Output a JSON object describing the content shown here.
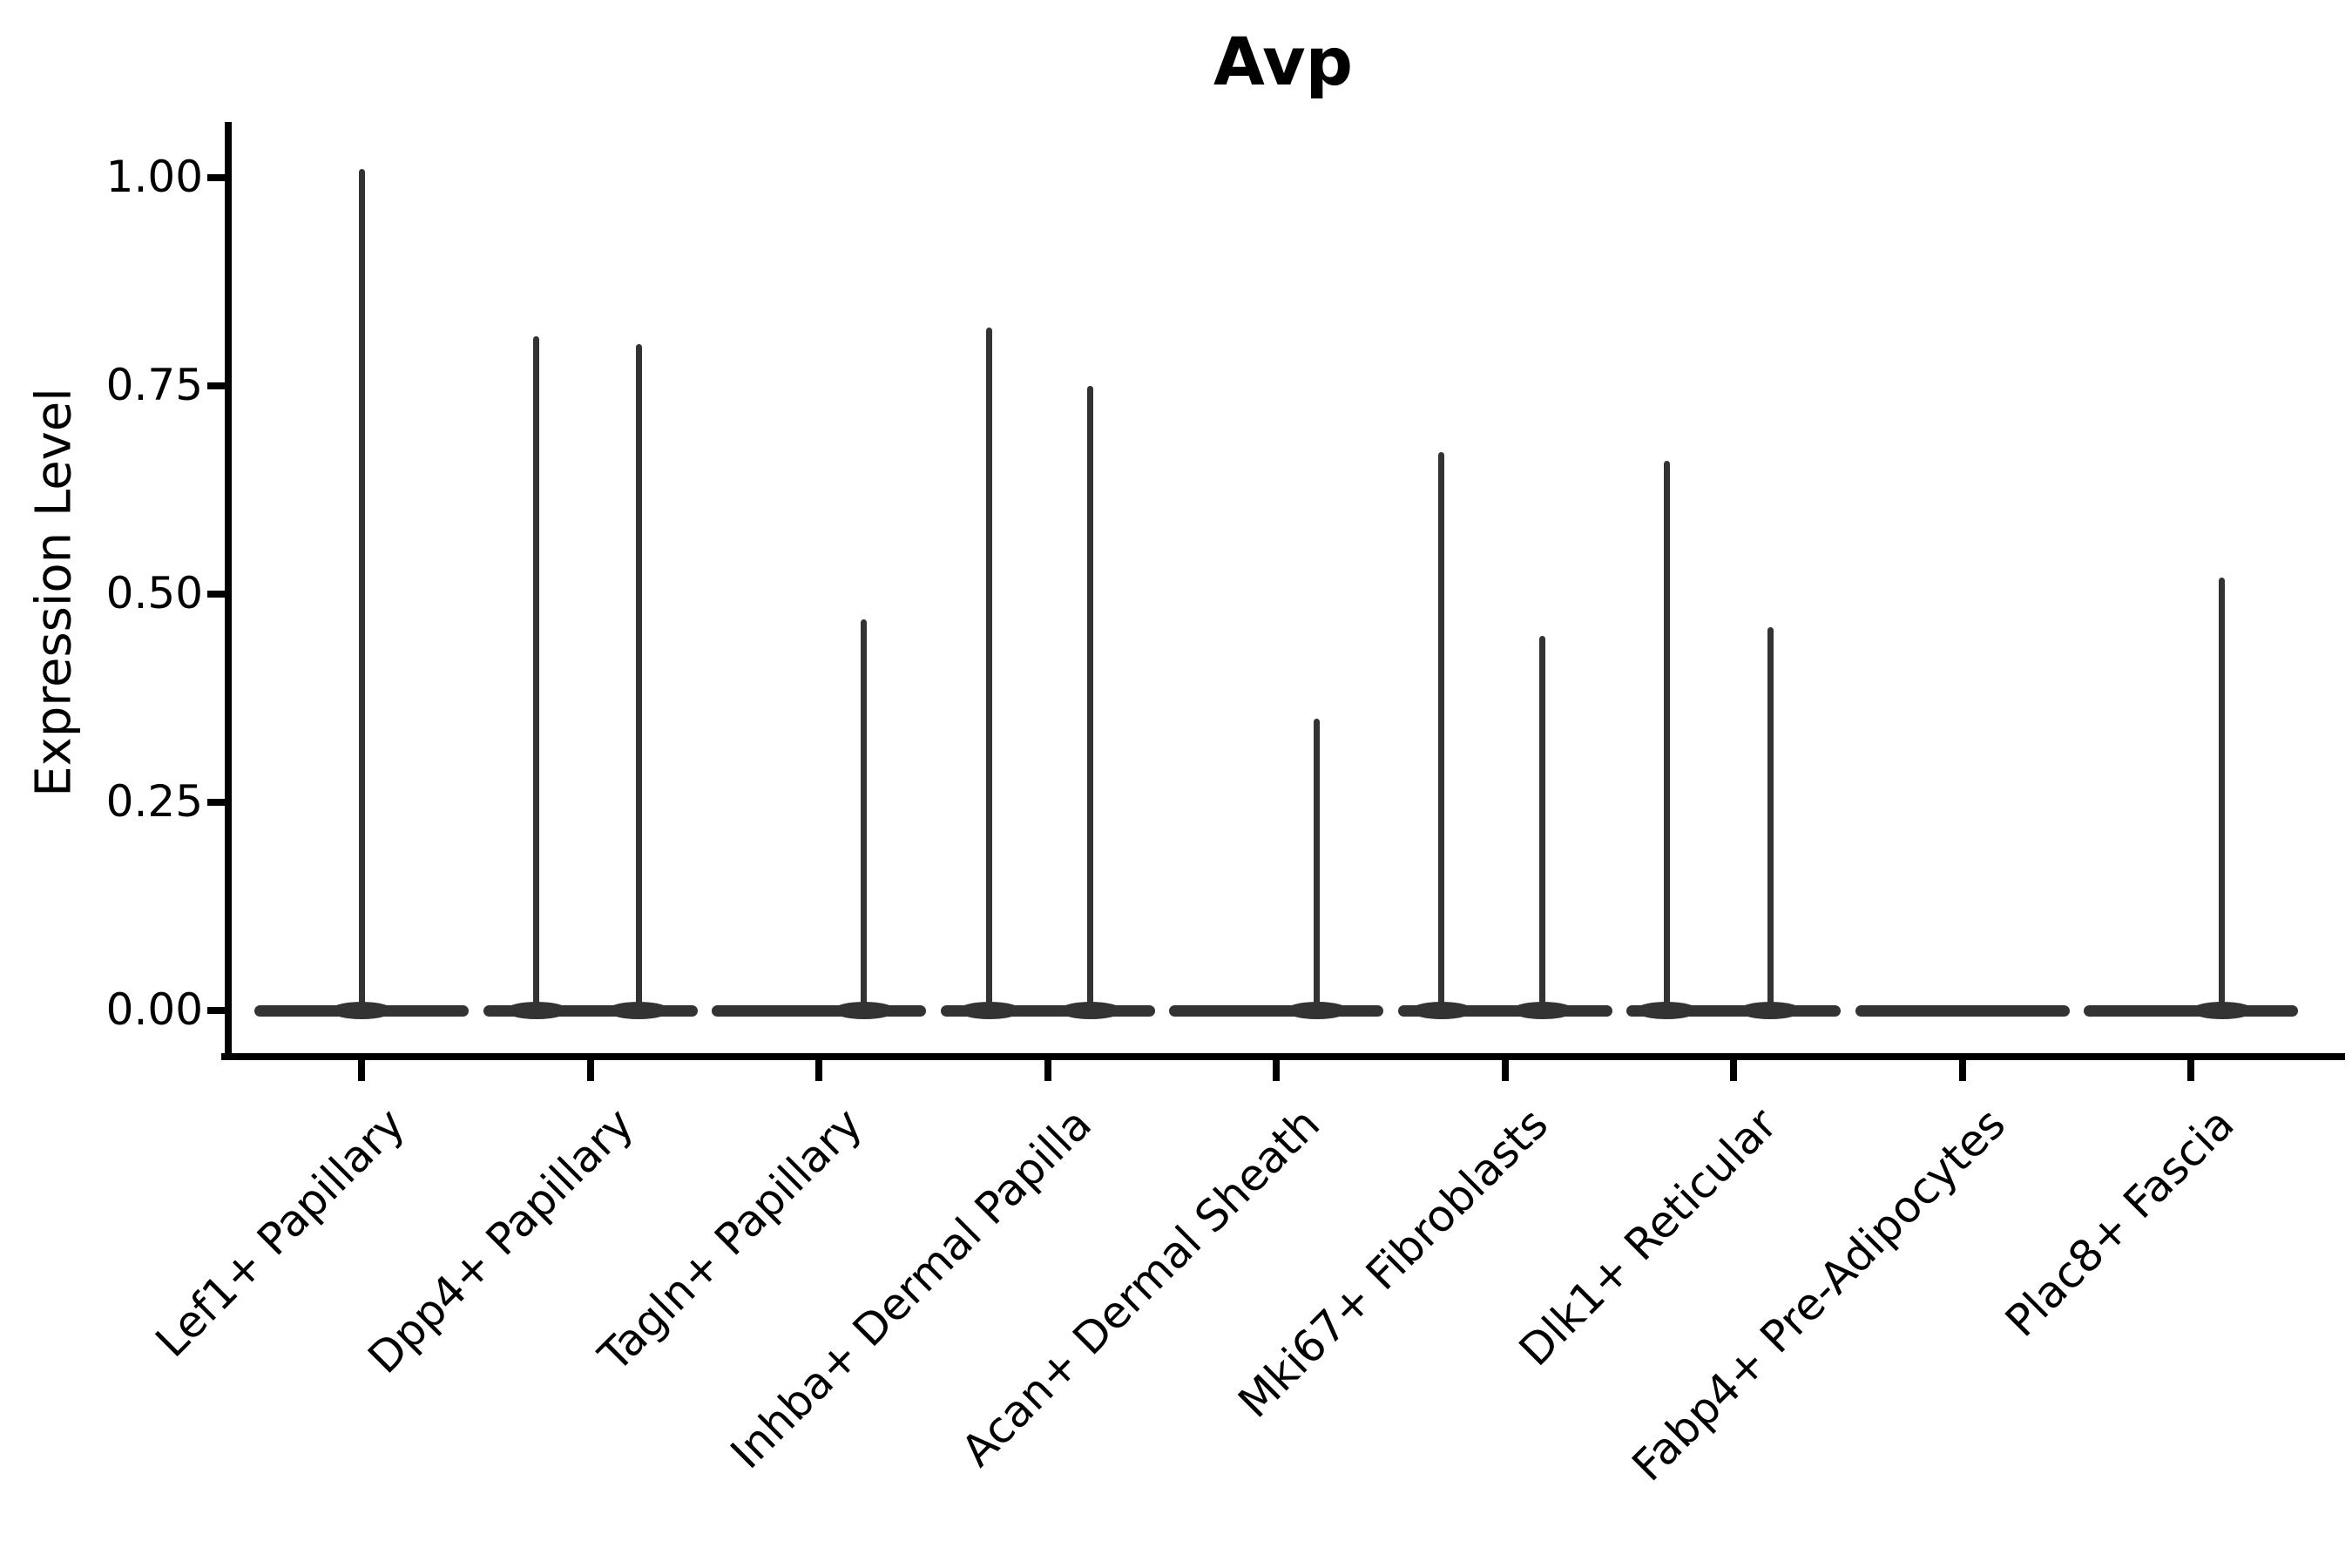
{
  "title": "Avp",
  "y_axis": {
    "label": "Expression Level",
    "tick_labels": [
      "0.00",
      "0.25",
      "0.50",
      "0.75",
      "1.00"
    ],
    "tick_values": [
      0,
      0.25,
      0.5,
      0.75,
      1.0
    ]
  },
  "x_axis": {
    "categories": [
      "Lef1+ Papillary",
      "Dpp4+ Papillary",
      "Tagln+ Papillary",
      "Inhba+ Dermal Papilla",
      "Acan+ Dermal Sheath",
      "Mki67+ Fibroblasts",
      "Dlk1+ Reticular",
      "Fabp4+ Pre-Adipocytes",
      "Plac8+ Fascia"
    ]
  },
  "colors": {
    "violin": "#333333",
    "axis": "#000000",
    "text": "#000000",
    "background": "#ffffff"
  },
  "chart_data": {
    "type": "violin",
    "title": "Avp",
    "xlabel": "",
    "ylabel": "Expression Level",
    "ylim": [
      -0.04,
      1.06
    ],
    "yticks": [
      0,
      0.25,
      0.5,
      0.75,
      1.0
    ],
    "ytick_labels": [
      "0.00",
      "0.25",
      "0.50",
      "0.75",
      "1.00"
    ],
    "grid": false,
    "legend": false,
    "note": "Violins are collapsed into flat bodies at expression 0 with thin density spikes rising to the maximum expression values listed below; x_offset_frac is the horizontal position of each spike as a fraction of the category slot width relative to the category center.",
    "categories": [
      "Lef1+ Papillary",
      "Dpp4+ Papillary",
      "Tagln+ Papillary",
      "Inhba+ Dermal Papilla",
      "Acan+ Dermal Sheath",
      "Mki67+ Fibroblasts",
      "Dlk1+ Reticular",
      "Fabp4+ Pre-Adipocytes",
      "Plac8+ Fascia"
    ],
    "series": [
      {
        "name": "Lef1+ Papillary",
        "body_value": 0,
        "spikes": [
          {
            "value": 1.01,
            "x_offset_frac": 0.0
          }
        ]
      },
      {
        "name": "Dpp4+ Papillary",
        "body_value": 0,
        "spikes": [
          {
            "value": 0.81,
            "x_offset_frac": -0.236
          },
          {
            "value": 0.8,
            "x_offset_frac": 0.213
          }
        ]
      },
      {
        "name": "Tagln+ Papillary",
        "body_value": 0,
        "spikes": [
          {
            "value": 0.47,
            "x_offset_frac": 0.198
          }
        ]
      },
      {
        "name": "Inhba+ Dermal Papilla",
        "body_value": 0,
        "spikes": [
          {
            "value": 0.82,
            "x_offset_frac": -0.255
          },
          {
            "value": 0.75,
            "x_offset_frac": 0.187
          }
        ]
      },
      {
        "name": "Acan+ Dermal Sheath",
        "body_value": 0,
        "spikes": [
          {
            "value": 0.35,
            "x_offset_frac": 0.179
          }
        ]
      },
      {
        "name": "Mki67+ Fibroblasts",
        "body_value": 0,
        "spikes": [
          {
            "value": 0.67,
            "x_offset_frac": -0.278
          },
          {
            "value": 0.45,
            "x_offset_frac": 0.164
          }
        ]
      },
      {
        "name": "Dlk1+ Reticular",
        "body_value": 0,
        "spikes": [
          {
            "value": 0.66,
            "x_offset_frac": -0.293
          },
          {
            "value": 0.46,
            "x_offset_frac": 0.16
          }
        ]
      },
      {
        "name": "Fabp4+ Pre-Adipocytes",
        "body_value": 0,
        "spikes": []
      },
      {
        "name": "Plac8+ Fascia",
        "body_value": 0,
        "spikes": [
          {
            "value": 0.52,
            "x_offset_frac": 0.137
          }
        ]
      }
    ]
  }
}
